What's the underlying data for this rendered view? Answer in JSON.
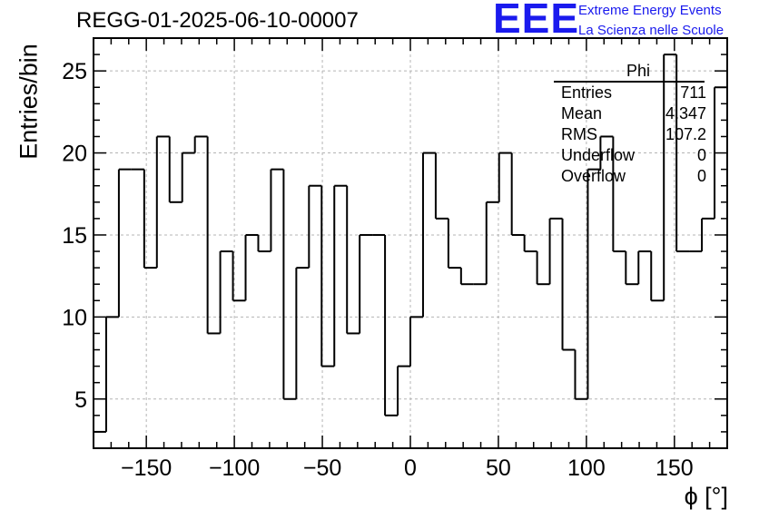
{
  "chart_data": {
    "type": "bar",
    "style": "step-histogram",
    "title": "REGG-01-2025-06-10-00007",
    "xlabel": "ϕ [°]",
    "ylabel": "Entries/bin",
    "xlim": [
      -180,
      180
    ],
    "ylim": [
      2,
      27
    ],
    "grid": true,
    "bin_width": 7.2,
    "x": [
      -176.4,
      -169.2,
      -162,
      -154.8,
      -147.6,
      -140.4,
      -133.2,
      -126,
      -118.8,
      -111.6,
      -104.4,
      -97.2,
      -90,
      -82.8,
      -75.6,
      -68.4,
      -61.2,
      -54,
      -46.8,
      -39.6,
      -32.4,
      -25.2,
      -18,
      -10.8,
      -3.6,
      3.6,
      10.8,
      18,
      25.2,
      32.4,
      39.6,
      46.8,
      54,
      61.2,
      68.4,
      75.6,
      82.8,
      90,
      97.2,
      104.4,
      111.6,
      118.8,
      126,
      133.2,
      140.4,
      147.6,
      154.8,
      162,
      169.2,
      176.4
    ],
    "values": [
      3,
      10,
      19,
      19,
      13,
      21,
      17,
      20,
      21,
      9,
      14,
      11,
      15,
      14,
      19,
      5,
      13,
      18,
      7,
      18,
      9,
      15,
      15,
      4,
      7,
      10,
      20,
      16,
      13,
      12,
      12,
      17,
      20,
      15,
      14,
      12,
      16,
      8,
      5,
      19,
      21,
      14,
      12,
      14,
      11,
      26,
      14,
      14,
      16,
      24
    ],
    "xticks": [
      -150,
      -100,
      -50,
      0,
      50,
      100,
      150
    ],
    "xtick_labels": [
      "−150",
      "−100",
      "−50",
      "0",
      "50",
      "100",
      "150"
    ],
    "yticks": [
      5,
      10,
      15,
      20,
      25
    ],
    "ytick_labels": [
      "5",
      "10",
      "15",
      "20",
      "25"
    ],
    "stats_box": {
      "name": "Phi",
      "rows": [
        {
          "label": "Entries",
          "value": "711"
        },
        {
          "label": "Mean",
          "value": "4.347"
        },
        {
          "label": "RMS",
          "value": "107.2"
        },
        {
          "label": "Underflow",
          "value": "0"
        },
        {
          "label": "Overflow",
          "value": "0"
        }
      ]
    }
  },
  "logo": {
    "mark": "EEE",
    "line1": "Extreme Energy Events",
    "line2": "La Scienza nelle Scuole"
  },
  "colors": {
    "brand": "#1a1aee",
    "line": "#000000",
    "grid": "#b4b4b4"
  }
}
